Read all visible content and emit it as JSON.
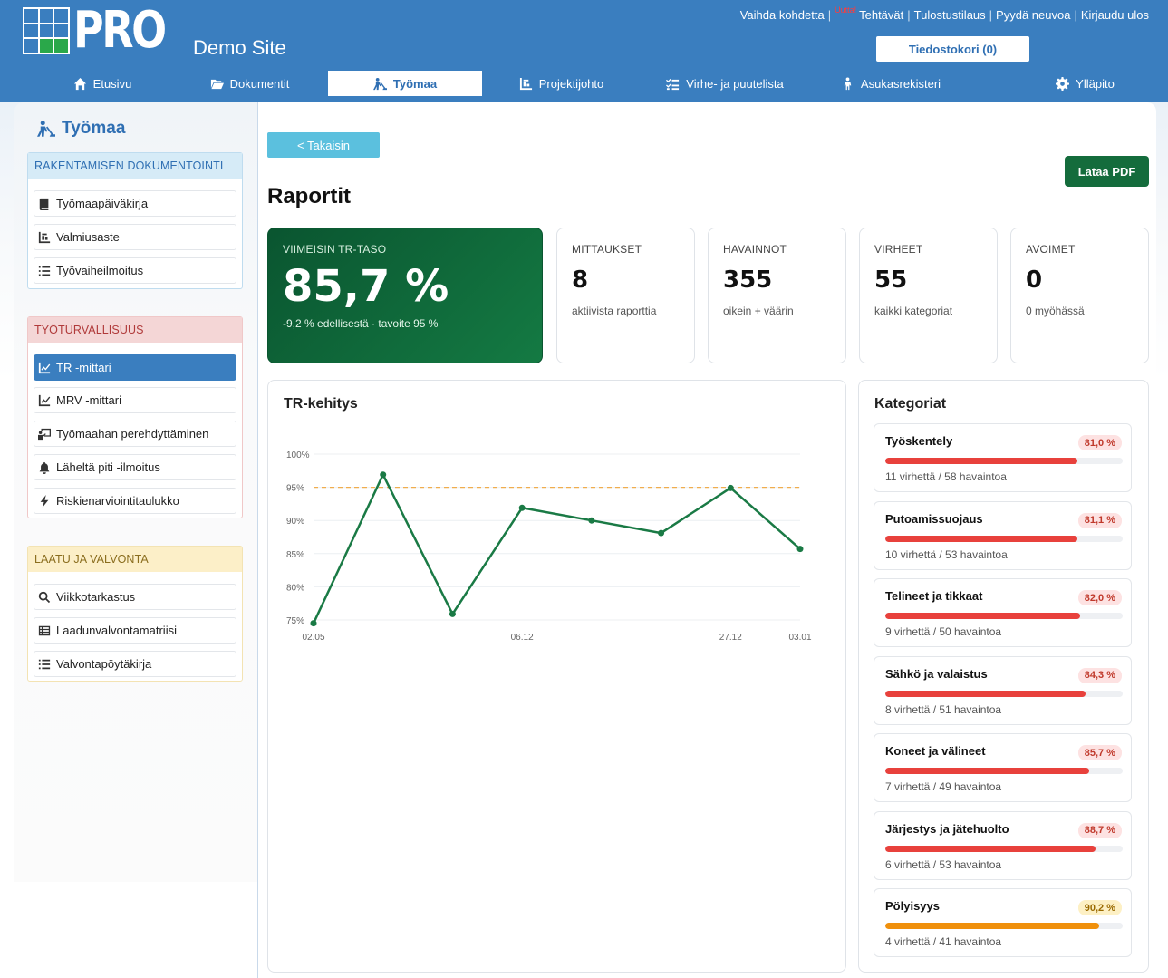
{
  "header": {
    "logo_text": "PRO",
    "site_name": "Demo Site",
    "links": {
      "change_site": "Vaihda kohdetta",
      "new_badge": "Uutta!",
      "tasks": "Tehtävät",
      "print_order": "Tulostustilaus",
      "ask_advice": "Pyydä neuvoa",
      "logout": "Kirjaudu ulos"
    },
    "file_cart": "Tiedostokori (0)"
  },
  "nav": {
    "home": "Etusivu",
    "documents": "Dokumentit",
    "site": "Työmaa",
    "project": "Projektijohto",
    "defects": "Virhe- ja puutelista",
    "residents": "Asukasrekisteri",
    "admin": "Ylläpito"
  },
  "sidebar": {
    "title": "Työmaa",
    "sections": [
      {
        "title": "RAKENTAMISEN DOKUMENTOINTI",
        "items": [
          "Työmaapäiväkirja",
          "Valmiusaste",
          "Työvaiheilmoitus"
        ]
      },
      {
        "title": "TYÖTURVALLISUUS",
        "items": [
          "TR -mittari",
          "MRV -mittari",
          "Työmaahan perehdyttäminen",
          "Läheltä piti -ilmoitus",
          "Riskienarviointitaulukko"
        ]
      },
      {
        "title": "LAATU JA VALVONTA",
        "items": [
          "Viikkotarkastus",
          "Laadunvalvontamatriisi",
          "Valvontapöytäkirja"
        ]
      }
    ]
  },
  "main": {
    "back_label": "< Takaisin",
    "pdf_label": "Lataa PDF",
    "title": "Raportit",
    "kpis": {
      "latest": {
        "label": "VIIMEISIN TR-TASO",
        "value": "85,7 %",
        "sub": "-9,2 % edellisestä · tavoite 95 %"
      },
      "measurements": {
        "label": "MITTAUKSET",
        "value": "8",
        "sub": "aktiivista raporttia"
      },
      "observations": {
        "label": "HAVAINNOT",
        "value": "355",
        "sub": "oikein + väärin"
      },
      "errors": {
        "label": "VIRHEET",
        "value": "55",
        "sub": "kaikki kategoriat"
      },
      "open": {
        "label": "AVOIMET",
        "value": "0",
        "sub": "0 myöhässä"
      }
    },
    "chart_title": "TR-kehitys",
    "categories_title": "Kategoriat",
    "categories": [
      {
        "name": "Työskentely",
        "percent": "81,0 %",
        "level": 81.0,
        "sub": "11 virhettä / 58 havaintoa"
      },
      {
        "name": "Putoamissuojaus",
        "percent": "81,1 %",
        "level": 81.1,
        "sub": "10 virhettä / 53 havaintoa"
      },
      {
        "name": "Telineet ja tikkaat",
        "percent": "82,0 %",
        "level": 82.0,
        "sub": "9 virhettä / 50 havaintoa"
      },
      {
        "name": "Sähkö ja valaistus",
        "percent": "84,3 %",
        "level": 84.3,
        "sub": "8 virhettä / 51 havaintoa"
      },
      {
        "name": "Koneet ja välineet",
        "percent": "85,7 %",
        "level": 85.7,
        "sub": "7 virhettä / 49 havaintoa"
      },
      {
        "name": "Järjestys ja jätehuolto",
        "percent": "88,7 %",
        "level": 88.7,
        "sub": "6 virhettä / 53 havaintoa"
      },
      {
        "name": "Pölyisyys",
        "percent": "90,2 %",
        "level": 90.2,
        "sub": "4 virhettä / 41 havaintoa"
      }
    ]
  },
  "colors": {
    "header_blue": "#3a7ebf",
    "hero_green": "#0a5530",
    "line_green": "#1a7a45",
    "target_orange": "#f0ad4e",
    "bar_red": "#e8413c",
    "bar_orange": "#f0900c"
  },
  "chart_data": {
    "type": "line",
    "title": "TR-kehitys",
    "x_ticks": [
      "02.05",
      "06.12",
      "27.12",
      "03.01"
    ],
    "y_ticks": [
      "75%",
      "80%",
      "85%",
      "90%",
      "95%",
      "100%"
    ],
    "ylim": [
      75,
      100
    ],
    "target": 95,
    "series": [
      {
        "values": [
          74.5,
          96.9,
          75.9,
          91.9,
          90.0,
          88.1,
          94.9,
          85.7
        ]
      }
    ],
    "grid": true
  }
}
